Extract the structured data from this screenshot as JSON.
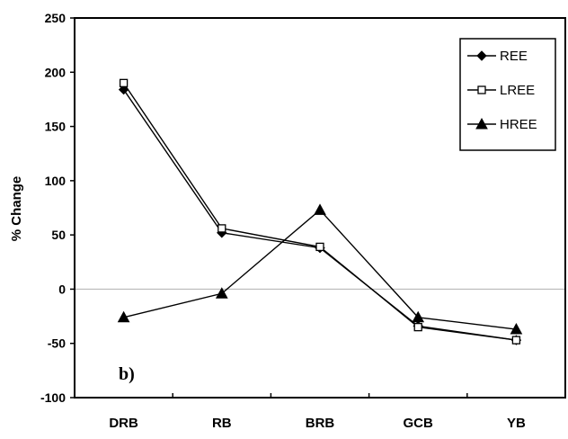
{
  "chart_data": {
    "type": "line",
    "ylabel": "% Change",
    "xlabel": "",
    "panel_label": "b)",
    "categories": [
      "DRB",
      "RB",
      "BRB",
      "GCB",
      "YB"
    ],
    "ylim": [
      -100,
      250
    ],
    "yticks": [
      250,
      200,
      150,
      100,
      50,
      0,
      -50,
      -100
    ],
    "zero_line": true,
    "legend_position": "top-right",
    "series": [
      {
        "name": "REE",
        "marker": "diamond-filled",
        "values": [
          184,
          52,
          38,
          -34,
          -47
        ]
      },
      {
        "name": "LREE",
        "marker": "square-open",
        "values": [
          190,
          56,
          39,
          -35,
          -47
        ]
      },
      {
        "name": "HREE",
        "marker": "triangle-filled",
        "values": [
          -26,
          -4,
          73,
          -26,
          -37
        ]
      }
    ],
    "colors": {
      "line": "#000000",
      "background": "#ffffff",
      "zero_line": "#b0b0b0"
    }
  }
}
